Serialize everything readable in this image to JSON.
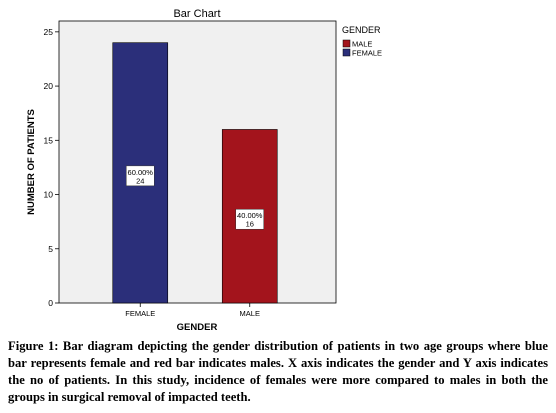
{
  "chart_data": {
    "type": "bar",
    "title": "Bar Chart",
    "xlabel": "GENDER",
    "ylabel": "NUMBER OF PATIENTS",
    "categories": [
      "FEMALE",
      "MALE"
    ],
    "values": [
      24,
      16
    ],
    "bar_labels": [
      {
        "percent": "60.00%",
        "count": "24"
      },
      {
        "percent": "40.00%",
        "count": "16"
      }
    ],
    "colors": [
      "#2b2f7a",
      "#a3141c"
    ],
    "ylim": [
      0,
      26
    ],
    "yticks": [
      0,
      5,
      10,
      15,
      20,
      25
    ],
    "grid": false,
    "legend": {
      "title": "GENDER",
      "placement": "right",
      "entries": [
        {
          "label": "MALE",
          "color": "#a3141c"
        },
        {
          "label": "FEMALE",
          "color": "#2b2f7a"
        }
      ]
    }
  },
  "caption": "Figure 1: Bar diagram depicting the gender distribution of patients in two age groups where blue bar represents female and red bar indicates males. X axis indicates the gender and Y axis indicates the no of patients. In this study, incidence of females were more compared to males in both the groups in surgical removal of impacted teeth.",
  "colors": {
    "plot_background": "#f0f0f0",
    "frame": "#000000"
  }
}
